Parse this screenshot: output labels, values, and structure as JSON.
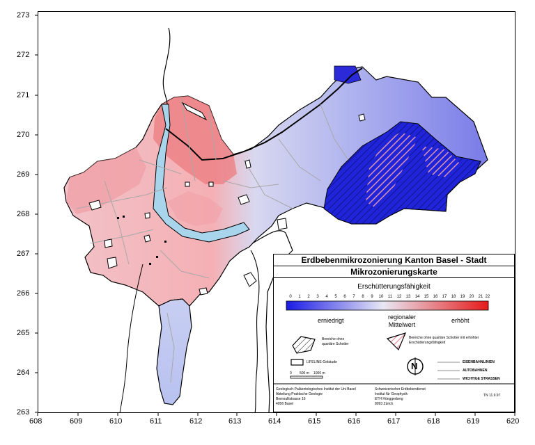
{
  "axes": {
    "x_ticks": [
      "608",
      "609",
      "610",
      "611",
      "612",
      "613",
      "614",
      "615",
      "616",
      "617",
      "618",
      "619",
      "620"
    ],
    "y_ticks": [
      "273",
      "272",
      "271",
      "270",
      "269",
      "268",
      "267",
      "266",
      "265",
      "264",
      "263"
    ]
  },
  "legend": {
    "title": "Erdbebenmikrozonierung Kanton Basel - Stadt",
    "subtitle": "Mikrozonierungskarte",
    "scale_title": "Erschütterungsfähigkeit",
    "scale_numbers": [
      "0",
      "1",
      "2",
      "3",
      "4",
      "5",
      "6",
      "7",
      "8",
      "9",
      "10",
      "11",
      "12",
      "13",
      "14",
      "15",
      "16",
      "17",
      "18",
      "19",
      "20",
      "21",
      "22"
    ],
    "low_label": "erniedrigt",
    "mid_label_1": "regionaler",
    "mid_label_2": "Mittelwert",
    "high_label": "erhöht",
    "hatch_label_1": "Bereiche ohne",
    "hatch_label_2": "quartäre Schotter",
    "hatch_pink_label_1": "Bereiche ohne quartäre Schotter mit erhöhter",
    "hatch_pink_label_2": "Erschütterungsfähigkeit",
    "lifeline_label": "LIFELINE-Gebäude",
    "north_label": "N",
    "road_1": "EISENBAHNLINIEN",
    "road_2": "AUTOBAHNEN",
    "road_3": "WICHTIGE STRASSEN",
    "scale_0": "0",
    "scale_500": "500 m",
    "scale_1000": "1000 m",
    "inst_left_1": "Geologisch-Paläontologisches Institut der Uni Basel",
    "inst_left_2": "Abteilung Praktische Geologie",
    "inst_left_3": "Bernoullistrasse 16",
    "inst_left_4": "4056 Basel",
    "inst_right_1": "Schweizerischer Erdbebendienst",
    "inst_right_2": "Institut für Geophysik",
    "inst_right_3": "ETH Hönggerberg",
    "inst_right_4": "8093 Zürich",
    "doc_ref": "TN 11.9.97"
  },
  "colors": {
    "low": "#1a1ae6",
    "mid": "#e8e8f4",
    "high": "#e62020",
    "river": "#a8d4ec"
  }
}
